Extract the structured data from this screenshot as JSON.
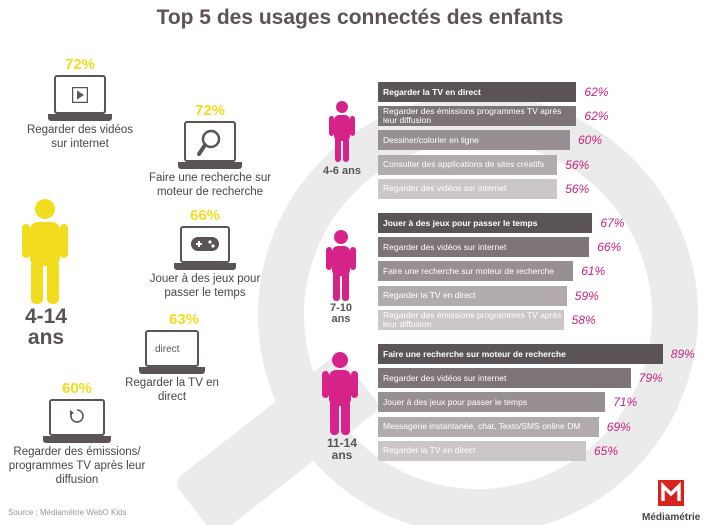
{
  "title": "Top 5 des usages connectés des enfants",
  "source": "Source : Médiamétrie WebO Kids",
  "brand": "Médiamétrie",
  "colors": {
    "yellow": "#f2dc1e",
    "magenta": "#d6238a",
    "dark": "#5a5358"
  },
  "overall": {
    "age_label": "4-14 ans",
    "items": [
      {
        "pct_label": "72%",
        "label": "Regarder des vidéos sur internet",
        "icon": "play-icon"
      },
      {
        "pct_label": "72%",
        "label": "Faire une recherche sur moteur de recherche",
        "icon": "magnifier-icon"
      },
      {
        "pct_label": "66%",
        "label": "Jouer à des jeux pour passer le temps",
        "icon": "gamepad-icon"
      },
      {
        "pct_label": "63%",
        "label": "Regarder la TV en direct",
        "icon": "tv-direct-icon",
        "screen_text": "direct"
      },
      {
        "pct_label": "60%",
        "label": "Regarder des émissions/ programmes TV après leur diffusion",
        "icon": "replay-icon"
      }
    ]
  },
  "chart_data": [
    {
      "type": "bar",
      "group": "4-6 ans",
      "categories": [
        "Regarder la TV en direct",
        "Regarder des émissions programmes TV après leur diffusion",
        "Dessiner/colorier en ligne",
        "Consulter des applications de sites créatifs",
        "Regarder des vidéos sur internet"
      ],
      "values": [
        62,
        62,
        60,
        56,
        56
      ],
      "value_labels": [
        "62%",
        "62%",
        "60%",
        "56%",
        "56%"
      ],
      "unit": "%"
    },
    {
      "type": "bar",
      "group": "7-10 ans",
      "categories": [
        "Jouer à des jeux pour passer le temps",
        "Regarder des vidéos sur internet",
        "Faire une recherche sur moteur de recherche",
        "Regarder la TV en direct",
        "Regarder des émissions programmes TV après leur diffusion"
      ],
      "values": [
        67,
        66,
        61,
        59,
        58
      ],
      "value_labels": [
        "67%",
        "66%",
        "61%",
        "59%",
        "58%"
      ],
      "unit": "%"
    },
    {
      "type": "bar",
      "group": "11-14 ans",
      "categories": [
        "Faire une recherche sur moteur de recherche",
        "Regarder des vidéos sur internet",
        "Jouer à des jeux pour passer le temps",
        "Messagerie instantanée, chat, Texto/SMS online DM",
        "Regarder la TV en direct"
      ],
      "values": [
        89,
        79,
        71,
        69,
        65
      ],
      "value_labels": [
        "89%",
        "79%",
        "71%",
        "69%",
        "65%"
      ],
      "unit": "%"
    }
  ]
}
